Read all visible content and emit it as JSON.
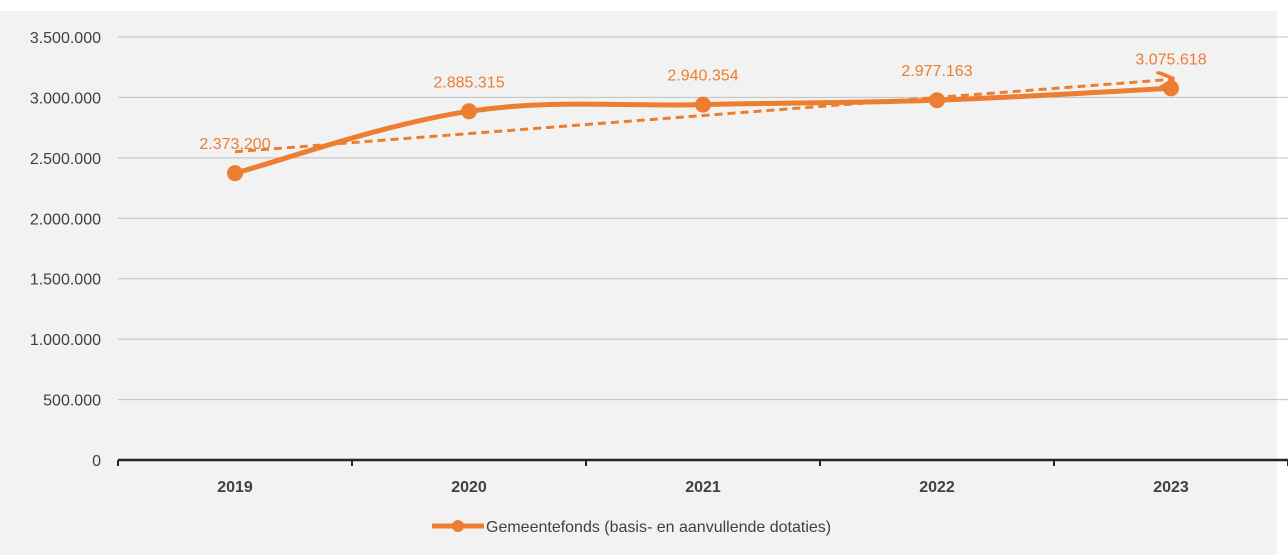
{
  "chart_data": {
    "type": "line",
    "categories": [
      "2019",
      "2020",
      "2021",
      "2022",
      "2023"
    ],
    "series": [
      {
        "name": "Gemeentefonds (basis- en aanvullende dotaties)",
        "values": [
          2373200,
          2885315,
          2940354,
          2977163,
          3075618
        ],
        "data_labels": [
          "2.373.200",
          "2.885.315",
          "2.940.354",
          "2.977.163",
          "3.075.618"
        ],
        "color": "#ed7d31",
        "smooth": true,
        "markers": true
      }
    ],
    "trendline": {
      "type": "linear",
      "style": "dashed",
      "arrow_end": true,
      "color": "#ed7d31"
    },
    "y_ticks": [
      0,
      500000,
      1000000,
      1500000,
      2000000,
      2500000,
      3000000,
      3500000
    ],
    "y_tick_labels": [
      "0",
      "500.000",
      "1.000.000",
      "1.500.000",
      "2.000.000",
      "2.500.000",
      "3.000.000",
      "3.500.000"
    ],
    "ylim": [
      0,
      3500000
    ],
    "title": "",
    "xlabel": "",
    "ylabel": "",
    "grid": true,
    "legend_position": "bottom",
    "colors": {
      "background": "#f2f2f2",
      "gridline": "#bfbfbf",
      "axis": "#262626",
      "text": "#404040"
    }
  }
}
